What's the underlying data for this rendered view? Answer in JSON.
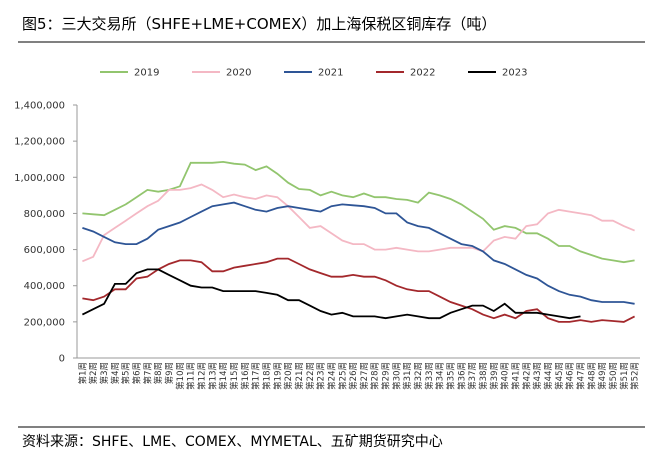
{
  "chart_data": {
    "type": "line",
    "title": "图5：三大交易所（SHFE+LME+COMEX）加上海保税区铜库存（吨）",
    "source": "资料来源：SHFE、LME、COMEX、MYMETAL、五矿期货研究中心",
    "categories": [
      "第1周",
      "第2周",
      "第3周",
      "第4周",
      "第5周",
      "第6周",
      "第7周",
      "第8周",
      "第9周",
      "第10周",
      "第11周",
      "第12周",
      "第13周",
      "第14周",
      "第15周",
      "第16周",
      "第17周",
      "第18周",
      "第19周",
      "第20周",
      "第21周",
      "第22周",
      "第23周",
      "第24周",
      "第25周",
      "第26周",
      "第27周",
      "第28周",
      "第29周",
      "第30周",
      "第31周",
      "第32周",
      "第33周",
      "第34周",
      "第35周",
      "第36周",
      "第37周",
      "第38周",
      "第39周",
      "第40周",
      "第41周",
      "第42周",
      "第43周",
      "第44周",
      "第45周",
      "第46周",
      "第47周",
      "第48周",
      "第49周",
      "第50周",
      "第51周",
      "第52周"
    ],
    "series": [
      {
        "name": "2019",
        "color": "#92c56e",
        "values": [
          800000,
          795000,
          790000,
          820000,
          850000,
          890000,
          930000,
          920000,
          930000,
          950000,
          1080000,
          1080000,
          1080000,
          1085000,
          1075000,
          1070000,
          1040000,
          1060000,
          1020000,
          970000,
          935000,
          930000,
          900000,
          920000,
          900000,
          890000,
          910000,
          890000,
          890000,
          880000,
          875000,
          860000,
          915000,
          900000,
          880000,
          850000,
          810000,
          770000,
          710000,
          730000,
          720000,
          690000,
          690000,
          660000,
          620000,
          620000,
          590000,
          570000,
          550000,
          540000,
          530000,
          540000
        ]
      },
      {
        "name": "2020",
        "color": "#f4b8c4",
        "values": [
          535000,
          560000,
          680000,
          720000,
          760000,
          800000,
          840000,
          870000,
          930000,
          930000,
          940000,
          960000,
          930000,
          890000,
          905000,
          890000,
          880000,
          900000,
          890000,
          840000,
          780000,
          720000,
          730000,
          690000,
          650000,
          630000,
          630000,
          600000,
          600000,
          610000,
          600000,
          590000,
          590000,
          600000,
          610000,
          610000,
          610000,
          590000,
          650000,
          670000,
          660000,
          730000,
          740000,
          800000,
          820000,
          810000,
          800000,
          790000,
          760000,
          760000,
          730000,
          705000
        ]
      },
      {
        "name": "2021",
        "color": "#2e5596",
        "values": [
          720000,
          700000,
          670000,
          640000,
          630000,
          630000,
          660000,
          710000,
          730000,
          750000,
          780000,
          810000,
          840000,
          850000,
          860000,
          840000,
          820000,
          810000,
          830000,
          840000,
          830000,
          820000,
          810000,
          840000,
          850000,
          845000,
          840000,
          830000,
          800000,
          800000,
          750000,
          730000,
          720000,
          690000,
          660000,
          630000,
          620000,
          590000,
          540000,
          520000,
          490000,
          460000,
          440000,
          400000,
          370000,
          350000,
          340000,
          320000,
          310000,
          310000,
          310000,
          300000
        ]
      },
      {
        "name": "2022",
        "color": "#a3282c",
        "values": [
          330000,
          320000,
          340000,
          380000,
          380000,
          440000,
          450000,
          490000,
          520000,
          540000,
          540000,
          530000,
          480000,
          480000,
          500000,
          510000,
          520000,
          530000,
          550000,
          550000,
          520000,
          490000,
          470000,
          450000,
          450000,
          460000,
          450000,
          450000,
          430000,
          400000,
          380000,
          370000,
          370000,
          340000,
          310000,
          290000,
          270000,
          240000,
          220000,
          240000,
          220000,
          260000,
          270000,
          220000,
          200000,
          200000,
          210000,
          200000,
          210000,
          205000,
          200000,
          230000
        ]
      },
      {
        "name": "2023",
        "color": "#000000",
        "values": [
          240000,
          270000,
          300000,
          410000,
          410000,
          470000,
          490000,
          490000,
          460000,
          430000,
          400000,
          390000,
          390000,
          370000,
          370000,
          370000,
          370000,
          360000,
          350000,
          320000,
          320000,
          290000,
          260000,
          240000,
          250000,
          230000,
          230000,
          230000,
          220000,
          230000,
          240000,
          230000,
          220000,
          220000,
          250000,
          270000,
          290000,
          290000,
          260000,
          300000,
          250000,
          250000,
          250000,
          240000,
          230000,
          220000,
          230000,
          null,
          null,
          null,
          null,
          null
        ]
      }
    ],
    "ylim": [
      0,
      1400000
    ],
    "yticks": [
      0,
      {
        "value": 200000,
        "label": "200,000"
      },
      {
        "value": 400000,
        "label": "400,000"
      },
      {
        "value": 600000,
        "label": "600,000"
      },
      {
        "value": 800000,
        "label": "800,000"
      },
      {
        "value": 1000000,
        "label": "1,000,000"
      },
      {
        "value": 1200000,
        "label": "1,200,000"
      },
      {
        "value": 1400000,
        "label": "1,400,000"
      }
    ],
    "grid": false,
    "legend": "top"
  }
}
